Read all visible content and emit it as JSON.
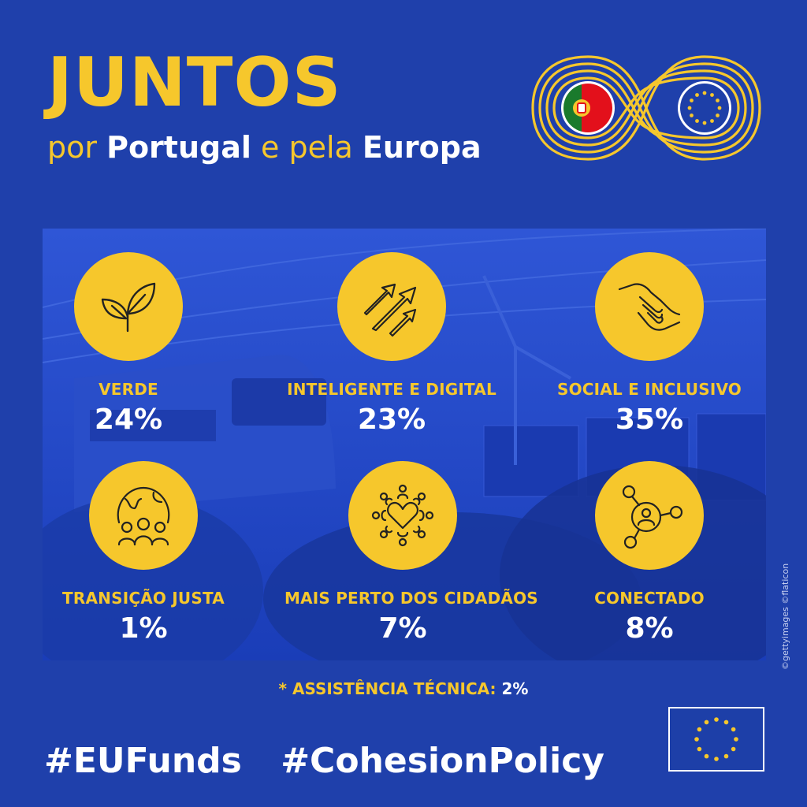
{
  "header": {
    "title": "JUNTOS",
    "subtitle": {
      "part1": "por",
      "part2": "Portugal",
      "part3": "e pela",
      "part4": "Europa"
    }
  },
  "categories": [
    {
      "label": "VERDE",
      "value": "24%",
      "icon": "leaf-icon"
    },
    {
      "label": "INTELIGENTE E DIGITAL",
      "value": "23%",
      "icon": "growth-arrows-icon"
    },
    {
      "label": "SOCIAL E INCLUSIVO",
      "value": "35%",
      "icon": "helping-hands-icon"
    },
    {
      "label": "TRANSIÇÃO JUSTA",
      "value": "1%",
      "icon": "globe-people-icon"
    },
    {
      "label": "MAIS PERTO DOS CIDADÃOS",
      "value": "7%",
      "icon": "heart-community-icon"
    },
    {
      "label": "CONECTADO",
      "value": "8%",
      "icon": "network-person-icon"
    }
  ],
  "note": {
    "label": "* ASSISTÊNCIA TÉCNICA:",
    "value": "2%"
  },
  "hashtags": [
    "#EUFunds",
    "#CohesionPolicy"
  ],
  "credit": "©gettyimages ©flaticon",
  "colors": {
    "background": "#1f40ab",
    "accent": "#f6c72c",
    "text": "#ffffff",
    "portugal_green": "#1a7a2c",
    "portugal_red": "#e3101b"
  }
}
